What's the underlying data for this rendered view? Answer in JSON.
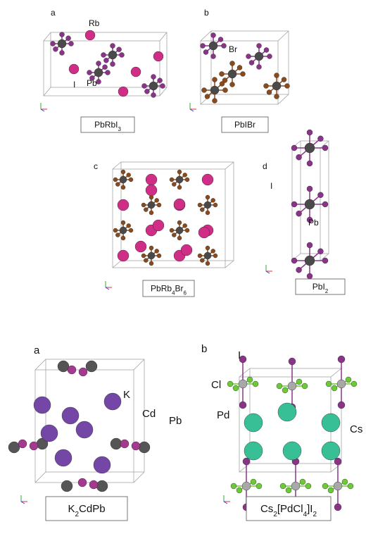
{
  "panels": [
    {
      "letter": "a",
      "caption_parts": [
        "PbRbI",
        "3"
      ],
      "atom_labels": [
        "Rb",
        "I",
        "Pb"
      ]
    },
    {
      "letter": "b",
      "caption_parts": [
        "PbIBr"
      ],
      "atom_labels": [
        "Br"
      ]
    },
    {
      "letter": "c",
      "caption_parts": [
        "PbRb",
        "4",
        "Br",
        "6"
      ],
      "atom_labels": []
    },
    {
      "letter": "d",
      "caption_parts": [
        "PbI",
        "2"
      ],
      "atom_labels": [
        "I",
        "Pb"
      ]
    },
    {
      "letter": "a",
      "caption_parts": [
        "K",
        "2",
        "CdPb"
      ],
      "atom_labels": [
        "K",
        "Cd",
        "Pb"
      ]
    },
    {
      "letter": "b",
      "caption_parts": [
        "Cs",
        "2",
        "[PdCl",
        "4",
        "]I",
        "2"
      ],
      "atom_labels": [
        "I",
        "Cl",
        "Pd",
        "Cs"
      ]
    }
  ]
}
